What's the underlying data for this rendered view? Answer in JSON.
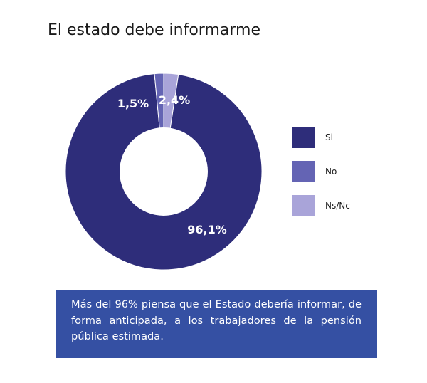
{
  "title": "El estado debe informarme",
  "colors": {
    "si": "#2e2d7a",
    "no": "#6464b4",
    "nsnc": "#a9a4d9",
    "note_bg": "#3550a3",
    "hole": "#ffffff"
  },
  "chart_data": {
    "type": "pie",
    "variant": "donut",
    "title": "El estado debe informarme",
    "legend_position": "right",
    "categories": [
      "Si",
      "No",
      "Ns/Nc"
    ],
    "values": [
      96.1,
      1.5,
      2.4
    ],
    "unit": "%",
    "data_labels": [
      "96,1%",
      "1,5%",
      "2,4%"
    ]
  },
  "legend": {
    "items": [
      {
        "label": "Si"
      },
      {
        "label": "No"
      },
      {
        "label": "Ns/Nc"
      }
    ]
  },
  "note": {
    "text": "Más del 96% piensa que el Estado debería informar, de forma anticipada, a los trabajadores de la pensión pública estimada."
  }
}
